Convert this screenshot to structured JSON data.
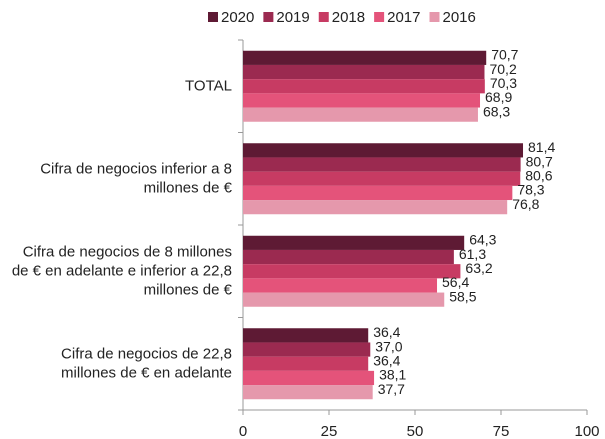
{
  "chart_data": {
    "type": "hbar",
    "categories": [
      "TOTAL",
      "Cifra de negocios inferior a 8 millones de €",
      "Cifra de negocios de 8 millones de € en adelante e inferior a 22,8 millones de €",
      "Cifra de negocios de 22,8 millones de € en adelante"
    ],
    "series": [
      {
        "name": "2020",
        "color": "#5e1a34",
        "values": [
          70.7,
          81.4,
          64.3,
          36.4
        ],
        "value_labels": [
          "70,7",
          "81,4",
          "64,3",
          "36,4"
        ]
      },
      {
        "name": "2019",
        "color": "#9b2a50",
        "values": [
          70.2,
          80.7,
          61.3,
          37.0
        ],
        "value_labels": [
          "70,2",
          "80,7",
          "61,3",
          "37,0"
        ]
      },
      {
        "name": "2018",
        "color": "#c73b63",
        "values": [
          70.3,
          80.6,
          63.2,
          36.4
        ],
        "value_labels": [
          "70,3",
          "80,6",
          "63,2",
          "36,4"
        ]
      },
      {
        "name": "2017",
        "color": "#e4537a",
        "values": [
          68.9,
          78.3,
          56.4,
          38.1
        ],
        "value_labels": [
          "68,9",
          "78,3",
          "56,4",
          "38,1"
        ]
      },
      {
        "name": "2016",
        "color": "#e598ac",
        "values": [
          68.3,
          76.8,
          58.5,
          37.7
        ],
        "value_labels": [
          "68,3",
          "76,8",
          "58,5",
          "37,7"
        ]
      }
    ],
    "xlim": [
      0,
      100
    ],
    "xticks": [
      0,
      25,
      50,
      75,
      100
    ],
    "grid": false
  }
}
